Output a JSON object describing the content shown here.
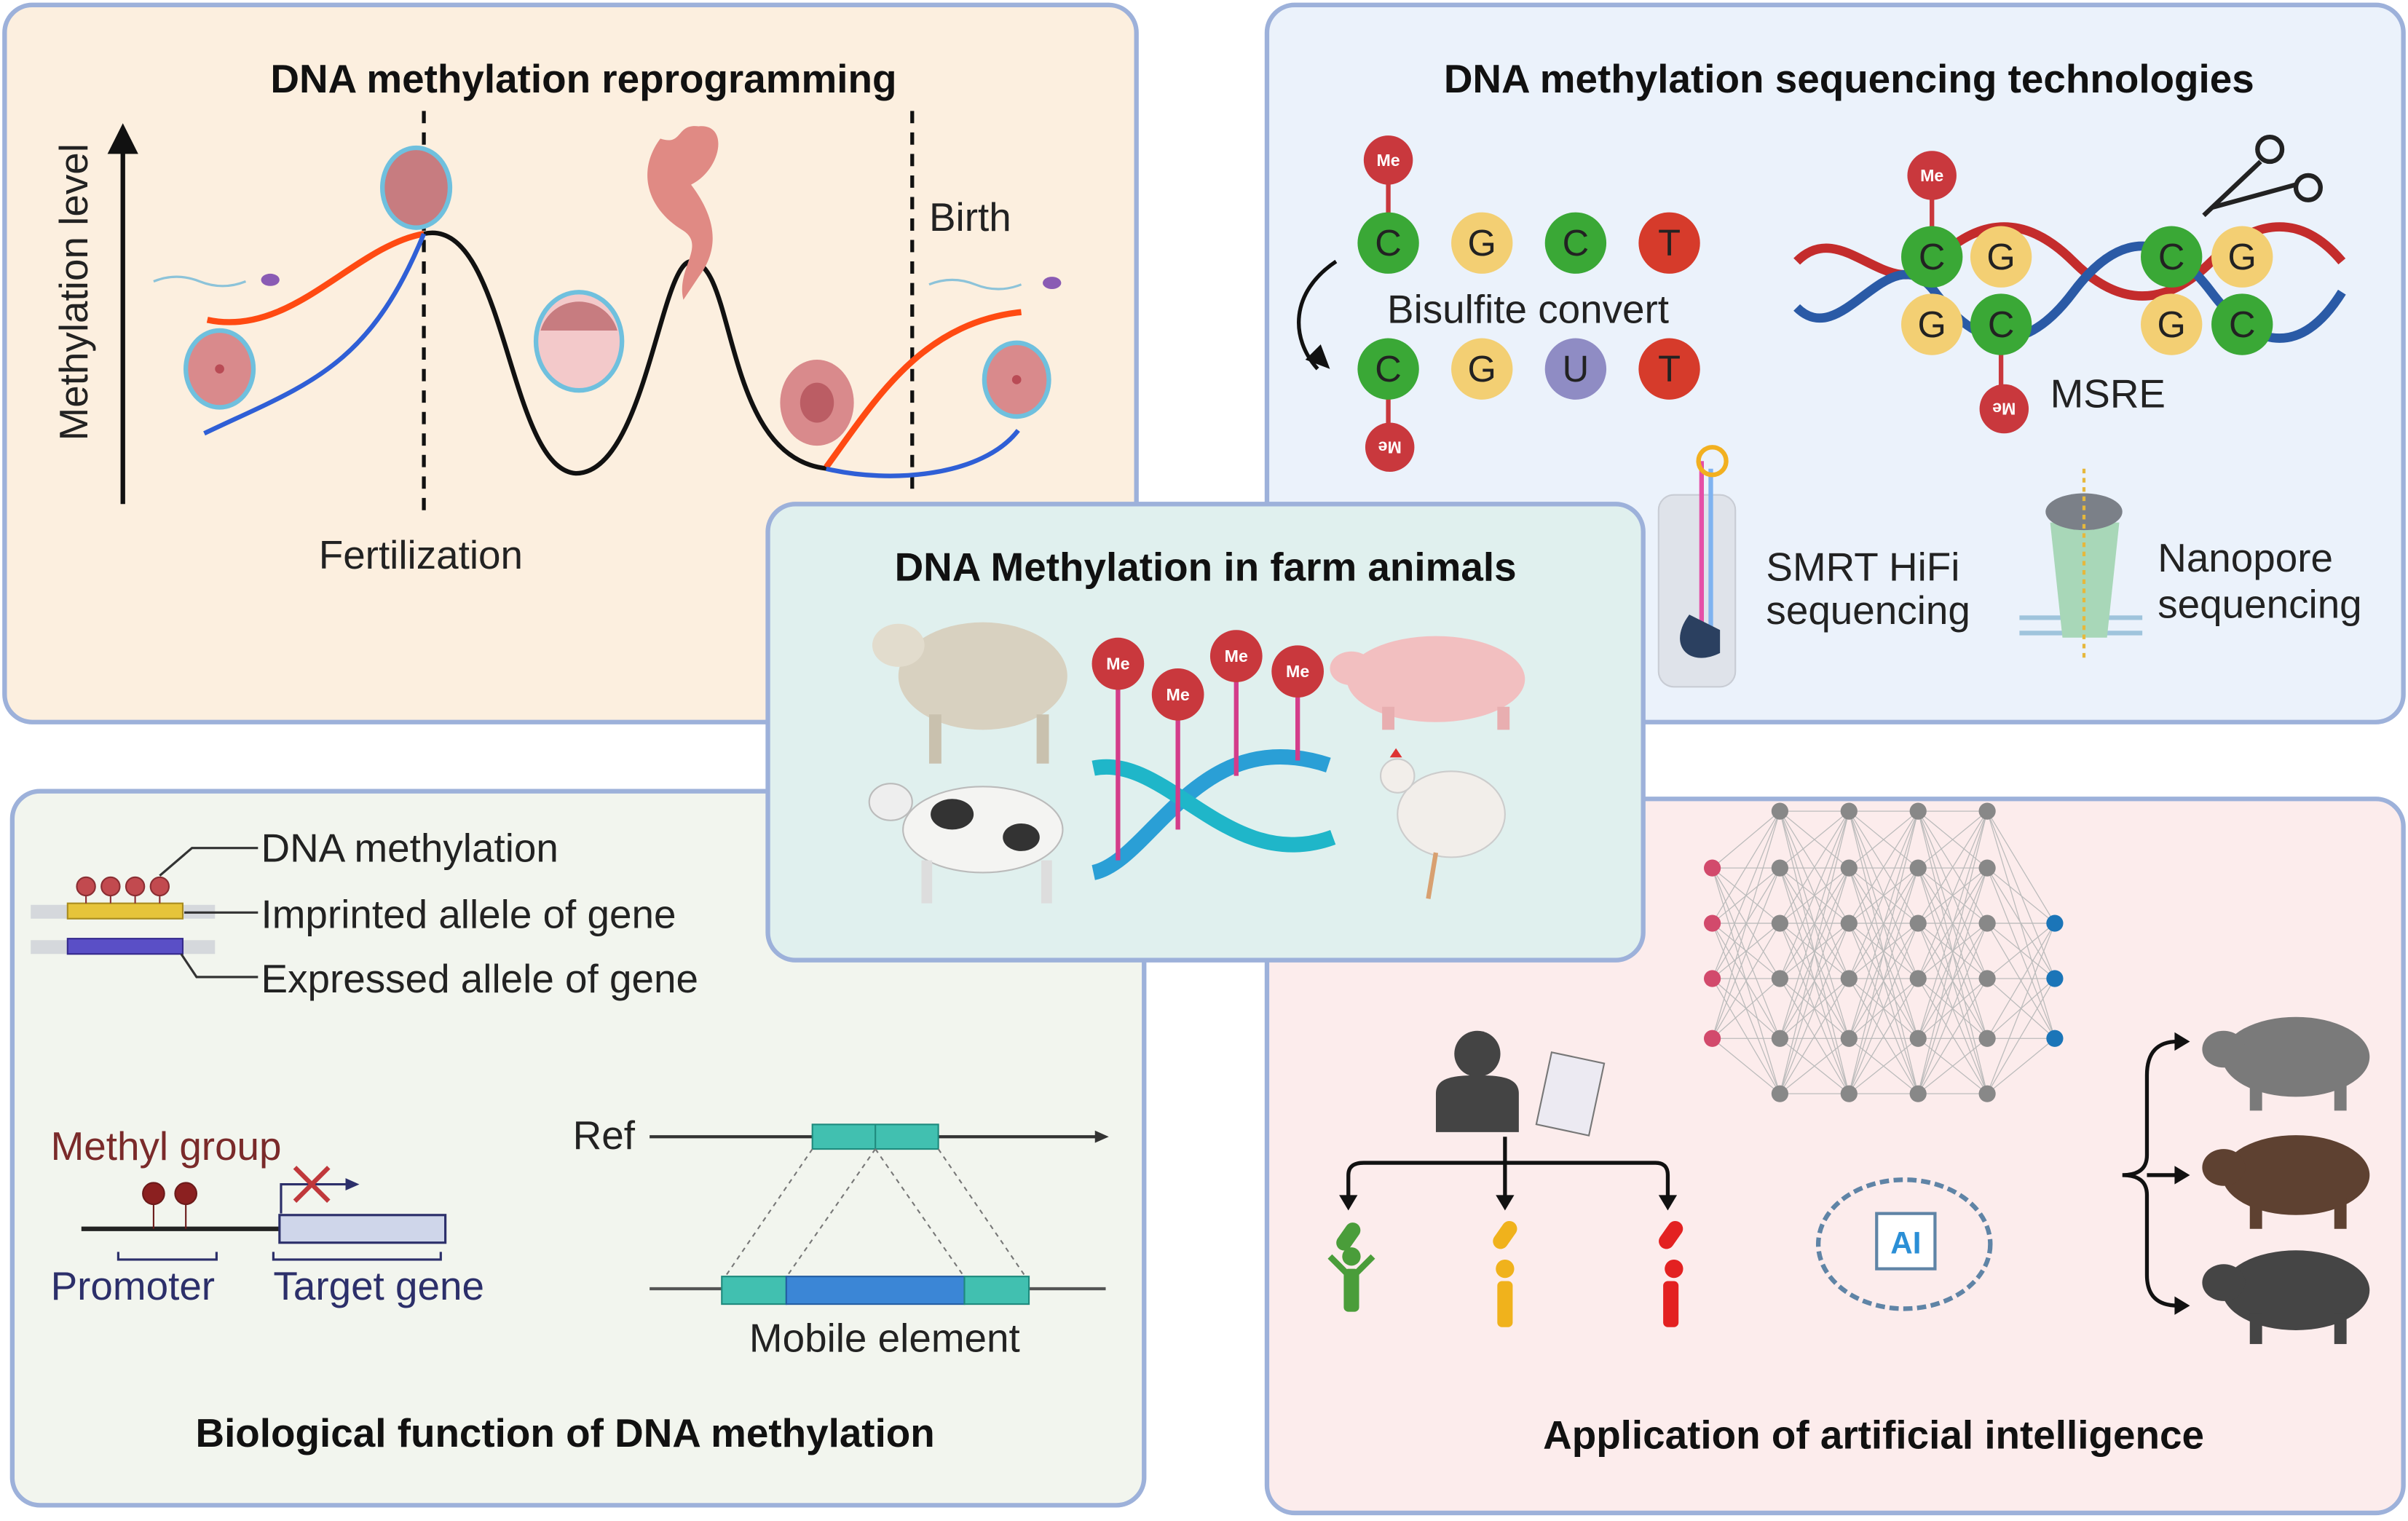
{
  "colors": {
    "panel_border": "#9db1da",
    "reprogramming_bg": "#fcefdf",
    "sequencing_bg": "#ebf2fb",
    "biofunction_bg": "#f2f5ee",
    "ai_bg": "#fcecec",
    "center_bg": "#e0f0ee",
    "cytosine": "#3aa836",
    "guanine": "#f3cf73",
    "thymine": "#d63b2b",
    "uracil": "#8f8cc4",
    "methyl": "#c9383d",
    "maternal_curve": "#ff4a12",
    "paternal_curve": "#2f5fd6"
  },
  "reprogramming": {
    "title": "DNA methylation reprogramming",
    "y_axis": "Methylation level",
    "fertilization": "Fertilization",
    "birth": "Birth"
  },
  "sequencing": {
    "title": "DNA methylation sequencing technologies",
    "methyl_label": "Me",
    "before_bisulfite": [
      "C",
      "G",
      "C",
      "T"
    ],
    "after_bisulfite": [
      "C",
      "G",
      "U",
      "T"
    ],
    "bisulfite": "Bisulfite convert",
    "msre_top": [
      "C",
      "G",
      "C",
      "G"
    ],
    "msre_bottom": [
      "G",
      "C",
      "G",
      "C"
    ],
    "msre": "MSRE",
    "smrt_line1": "SMRT HiFi",
    "smrt_line2": "sequencing",
    "nanopore_line1": "Nanopore",
    "nanopore_line2": "sequencing"
  },
  "center": {
    "title": "DNA Methylation in farm animals",
    "methyl_label": "Me",
    "icons": [
      "sheep-icon",
      "pig-icon",
      "cow-icon",
      "chicken-icon",
      "dna-helix-icon"
    ]
  },
  "biofunction": {
    "title": "Biological function of DNA methylation",
    "dna_methylation": "DNA methylation",
    "imprinted": "Imprinted allele of gene",
    "expressed": "Expressed allele of gene",
    "methyl_group": "Methyl group",
    "promoter": "Promoter",
    "target_gene": "Target gene",
    "ref": "Ref",
    "mobile_element": "Mobile element"
  },
  "ai": {
    "title": "Application of artificial intelligence",
    "chip_label": "AI",
    "icons": [
      "neural-network-icon",
      "doctor-icon",
      "clipboard-icon",
      "ai-brain-icon",
      "pig-icon"
    ]
  }
}
